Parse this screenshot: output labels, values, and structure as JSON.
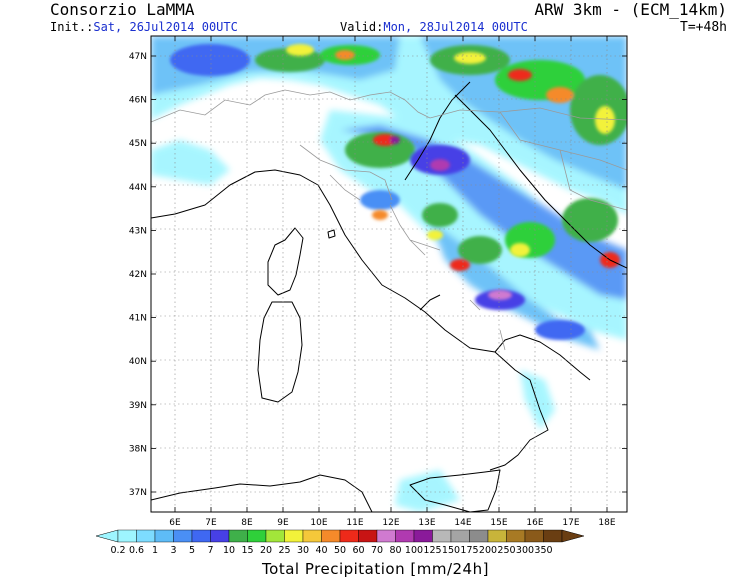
{
  "header": {
    "org": "Consorzio LaMMA",
    "model": "ARW 3km - (ECM_14km)",
    "init_label": "Init.:",
    "init_value": "Sat, 26Jul2014 00UTC",
    "valid_label": "Valid:",
    "valid_value": "Mon, 28Jul2014 00UTC",
    "timestep": "T=+48h"
  },
  "map": {
    "lat_labels": [
      "47N",
      "46N",
      "45N",
      "44N",
      "43N",
      "42N",
      "41N",
      "40N",
      "39N",
      "38N",
      "37N"
    ],
    "lon_labels": [
      "6E",
      "7E",
      "8E",
      "9E",
      "10E",
      "11E",
      "12E",
      "13E",
      "14E",
      "15E",
      "16E",
      "17E",
      "18E"
    ],
    "colors": {
      "land": "#ffffff",
      "coast": "#000000",
      "border": "#9a9a9a",
      "grid": "#8a8a8a"
    }
  },
  "colorbar": {
    "title": "Total Precipitation [mm/24h]",
    "labels": [
      "0.2",
      "0.6",
      "1",
      "3",
      "5",
      "7",
      "10",
      "15",
      "20",
      "25",
      "30",
      "40",
      "50",
      "60",
      "70",
      "80",
      "100",
      "125",
      "150",
      "175",
      "200",
      "250",
      "300",
      "350"
    ],
    "colors": [
      "#9ef5ff",
      "#7ddcff",
      "#5ebcf7",
      "#4a8ff5",
      "#3f68f2",
      "#4740e6",
      "#3fb04a",
      "#2fd03a",
      "#a2e63a",
      "#f2f23a",
      "#f5c83a",
      "#f58a2a",
      "#ee2a1a",
      "#c81414",
      "#d07ad0",
      "#b03ab0",
      "#8a1a9a",
      "#b8b8b8",
      "#a4a4a4",
      "#8c8c8c",
      "#c8b43a",
      "#a87a24",
      "#8a5a1a",
      "#6a3e12"
    ]
  }
}
